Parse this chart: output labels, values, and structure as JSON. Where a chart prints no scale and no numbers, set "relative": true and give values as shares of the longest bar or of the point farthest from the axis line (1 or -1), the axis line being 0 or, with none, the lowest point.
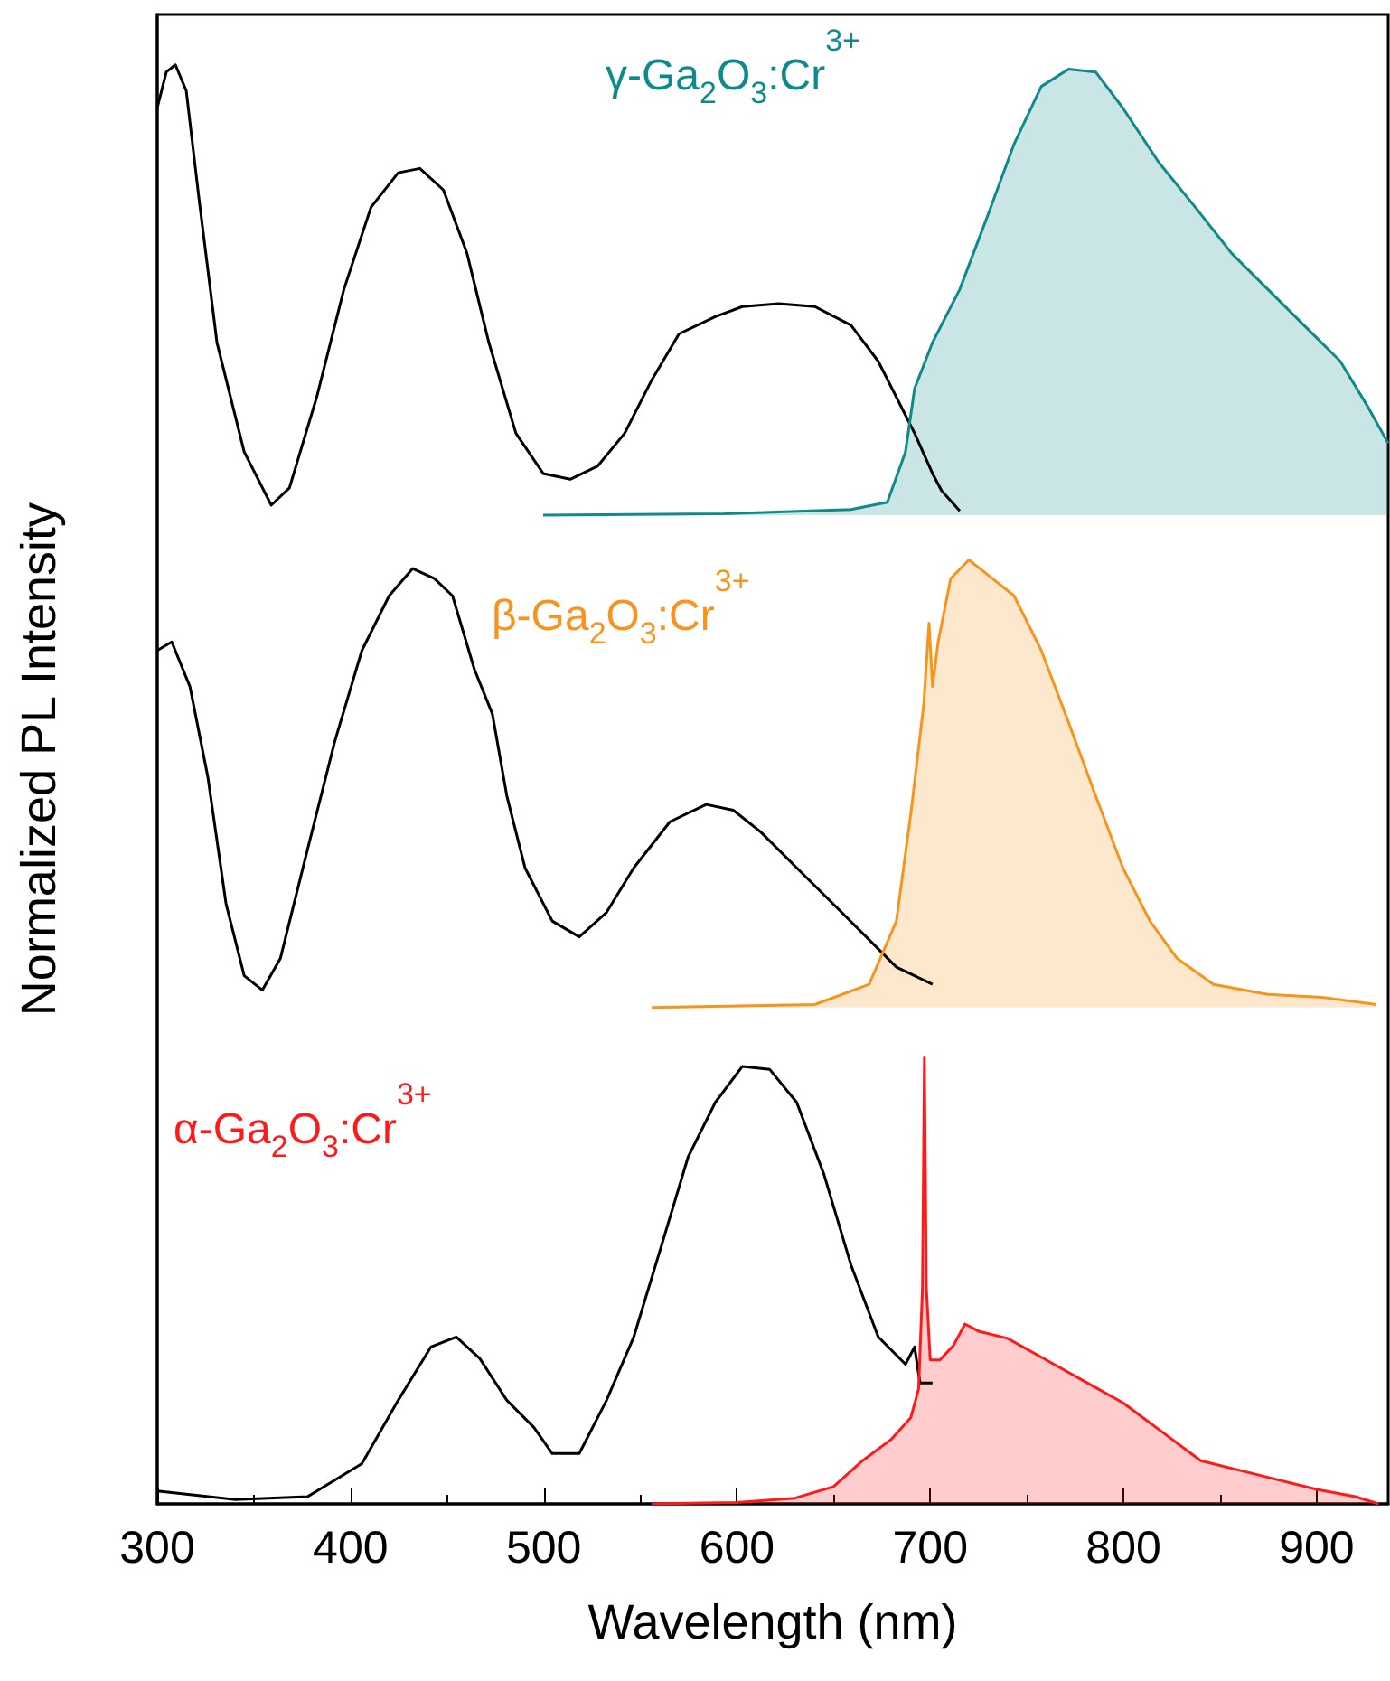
{
  "chart_data": {
    "type": "line",
    "xlabel": "Wavelength (nm)",
    "ylabel": "Normalized PL Intensity",
    "relative": true,
    "xlim": [
      300,
      937
    ],
    "xticks": [
      300,
      400,
      500,
      600,
      700,
      800,
      900
    ],
    "series": [
      {
        "color": "#000000",
        "x": [
          300,
          304.7,
          309.4,
          315,
          321.6,
          330.9,
          345,
          359,
          368.4,
          382.5,
          396.6,
          410.6,
          424.7,
          435.9,
          448.1,
          460.3,
          471.6,
          485.6,
          499.7,
          513.7,
          527.8,
          541.9,
          555.9,
          570,
          588.8,
          602.8,
          621.6,
          640.3,
          659,
          673.1,
          682.5,
          691.9,
          701.2,
          705.9,
          715.3
        ],
        "values": [
          0.97,
          0.995,
          1.0,
          0.982,
          0.907,
          0.807,
          0.731,
          0.694,
          0.706,
          0.769,
          0.844,
          0.901,
          0.925,
          0.928,
          0.913,
          0.869,
          0.807,
          0.744,
          0.716,
          0.712,
          0.721,
          0.744,
          0.781,
          0.813,
          0.825,
          0.832,
          0.834,
          0.832,
          0.819,
          0.794,
          0.769,
          0.744,
          0.716,
          0.704,
          0.69
        ]
      },
      {
        "type": "area",
        "name": "γ-Ga$_{2}$O$_{3}$:Cr$^{3+}$",
        "color": "#0e8a8a",
        "x": [
          499.7,
          593.4,
          659,
          677.8,
          687.2,
          691.9,
          701.2,
          715.3,
          729.4,
          743.4,
          757.5,
          771.6,
          785.6,
          799.7,
          818.4,
          837.2,
          856,
          874.7,
          893.4,
          912.2,
          926.2,
          937
        ],
        "values": [
          0.687,
          0.688,
          0.691,
          0.696,
          0.731,
          0.775,
          0.807,
          0.844,
          0.894,
          0.945,
          0.985,
          0.997,
          0.995,
          0.97,
          0.932,
          0.901,
          0.869,
          0.844,
          0.819,
          0.794,
          0.763,
          0.737
        ]
      },
      {
        "color": "#000000",
        "x": [
          300,
          307.5,
          316.9,
          326.2,
          335.6,
          345,
          354.4,
          363.7,
          377.8,
          391.9,
          405.9,
          420,
          432.2,
          443.4,
          452.8,
          464.1,
          473.4,
          480.9,
          490.3,
          504.4,
          518.4,
          532.5,
          546.6,
          565.3,
          584.1,
          598.1,
          612.2,
          630.9,
          649.7,
          668.4,
          682.5,
          691.9,
          701.2
        ],
        "values": [
          0.593,
          0.599,
          0.568,
          0.505,
          0.417,
          0.367,
          0.357,
          0.379,
          0.455,
          0.53,
          0.593,
          0.631,
          0.65,
          0.643,
          0.631,
          0.58,
          0.549,
          0.492,
          0.442,
          0.405,
          0.394,
          0.411,
          0.442,
          0.474,
          0.486,
          0.482,
          0.467,
          0.442,
          0.417,
          0.392,
          0.373,
          0.367,
          0.361
        ]
      },
      {
        "type": "area",
        "name": "β-Ga$_{2}$O$_{3}$:Cr$^{3+}$",
        "color": "#f7941d",
        "x": [
          555.9,
          640.3,
          668.4,
          682.5,
          690,
          696.6,
          699.4,
          701.2,
          704.1,
          710.6,
          720,
          729.4,
          743.4,
          757.5,
          771.6,
          785.6,
          799.7,
          813.7,
          827.8,
          846.6,
          874.7,
          902.8,
          930.9
        ],
        "values": [
          0.345,
          0.347,
          0.361,
          0.405,
          0.48,
          0.555,
          0.612,
          0.568,
          0.599,
          0.643,
          0.656,
          0.646,
          0.631,
          0.593,
          0.543,
          0.492,
          0.442,
          0.405,
          0.379,
          0.361,
          0.354,
          0.352,
          0.347
        ]
      },
      {
        "color": "#000000",
        "x": [
          300,
          340.3,
          377.8,
          405.9,
          424.7,
          441.6,
          454.7,
          466.9,
          480.9,
          495,
          504.4,
          518.4,
          532.5,
          546.6,
          560.6,
          574.7,
          588.8,
          602.8,
          616.9,
          630.9,
          645,
          659,
          673.1,
          687.2,
          691.9,
          694.7,
          701.2
        ],
        "values": [
          0.009,
          0.003,
          0.005,
          0.028,
          0.072,
          0.109,
          0.116,
          0.101,
          0.072,
          0.053,
          0.035,
          0.035,
          0.072,
          0.116,
          0.178,
          0.241,
          0.279,
          0.304,
          0.302,
          0.279,
          0.229,
          0.166,
          0.116,
          0.097,
          0.109,
          0.084,
          0.084
        ]
      },
      {
        "type": "area",
        "name": "α-Ga$_{2}$O$_{3}$:Cr$^{3+}$",
        "color": "#ff1a1a",
        "x": [
          556,
          600,
          630,
          650,
          665,
          680,
          690,
          694,
          696,
          697,
          698,
          700,
          705,
          712,
          718,
          725,
          740,
          760,
          780,
          800,
          820,
          840,
          870,
          900,
          920,
          932
        ],
        "values": [
          0.0,
          0.001,
          0.004,
          0.012,
          0.03,
          0.045,
          0.06,
          0.08,
          0.15,
          0.31,
          0.15,
          0.1,
          0.1,
          0.11,
          0.125,
          0.12,
          0.115,
          0.1,
          0.085,
          0.07,
          0.05,
          0.03,
          0.02,
          0.01,
          0.005,
          0.0
        ]
      }
    ]
  }
}
